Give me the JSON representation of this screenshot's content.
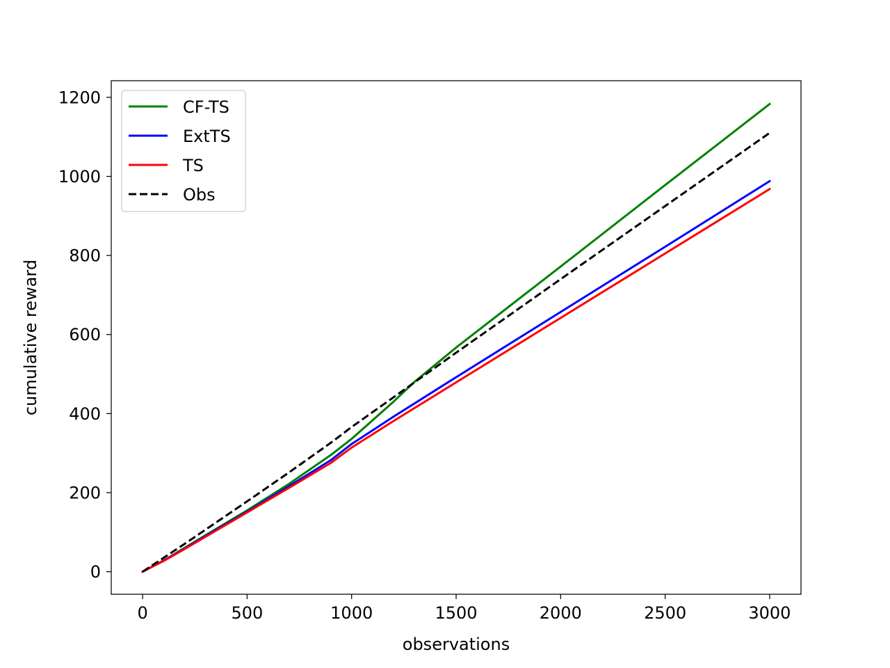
{
  "chart_data": {
    "type": "line",
    "title": "",
    "xlabel": "observations",
    "ylabel": "cumulative reward",
    "xlim": [
      -150,
      3150
    ],
    "ylim": [
      -57,
      1242
    ],
    "xticks": [
      0,
      500,
      1000,
      1500,
      2000,
      2500,
      3000
    ],
    "yticks": [
      0,
      200,
      400,
      600,
      800,
      1000,
      1200
    ],
    "xtick_labels": [
      "0",
      "500",
      "1000",
      "1500",
      "2000",
      "2500",
      "3000"
    ],
    "ytick_labels": [
      "0",
      "200",
      "400",
      "600",
      "800",
      "1000",
      "1200"
    ],
    "grid": false,
    "legend_position": "top-left",
    "series": [
      {
        "name": "CF-TS",
        "color": "#008000",
        "dash": "solid",
        "x": [
          0,
          100,
          200,
          300,
          500,
          700,
          900,
          1000,
          1200,
          1300,
          1500,
          2000,
          2500,
          3000
        ],
        "y": [
          0,
          28,
          60,
          92,
          155,
          222,
          295,
          336,
          430,
          480,
          567,
          772,
          978,
          1183
        ]
      },
      {
        "name": "ExtTS",
        "color": "#0000ff",
        "dash": "solid",
        "x": [
          0,
          100,
          200,
          300,
          500,
          700,
          900,
          1000,
          1200,
          1500,
          2000,
          2500,
          3000
        ],
        "y": [
          0,
          28,
          58,
          90,
          152,
          216,
          282,
          323,
          392,
          492,
          657,
          822,
          988
        ]
      },
      {
        "name": "TS",
        "color": "#ff0000",
        "dash": "solid",
        "x": [
          0,
          100,
          200,
          300,
          500,
          700,
          900,
          1000,
          1200,
          1500,
          2000,
          2500,
          3000
        ],
        "y": [
          0,
          27,
          57,
          88,
          150,
          212,
          275,
          314,
          381,
          479,
          642,
          805,
          968
        ]
      },
      {
        "name": "Obs",
        "color": "#000000",
        "dash": "dashed",
        "x": [
          0,
          100,
          200,
          300,
          500,
          700,
          900,
          1000,
          1200,
          1500,
          2000,
          2500,
          3000
        ],
        "y": [
          0,
          35,
          70,
          106,
          178,
          251,
          326,
          366,
          441,
          554,
          740,
          925,
          1110
        ]
      }
    ]
  }
}
